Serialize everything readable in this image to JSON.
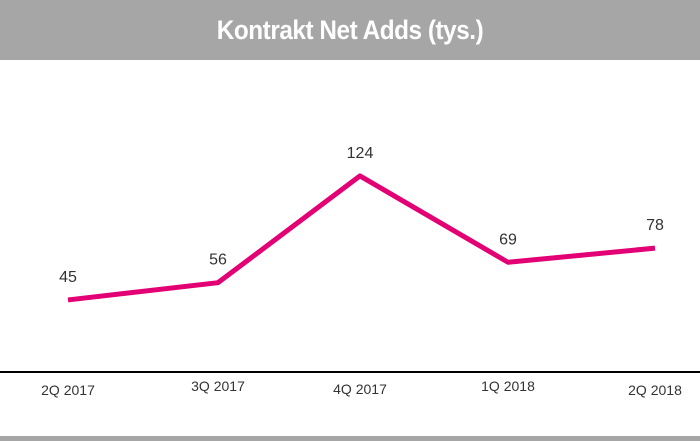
{
  "chart_data": {
    "type": "line",
    "title": "Kontrakt Net Adds (tys.)",
    "categories": [
      "2Q 2017",
      "3Q 2017",
      "4Q 2017",
      "1Q 2018",
      "2Q 2018"
    ],
    "values": [
      45,
      56,
      124,
      69,
      78
    ],
    "data_labels": [
      "45",
      "56",
      "124",
      "69",
      "78"
    ],
    "ylim": [
      0,
      200
    ],
    "grid": false,
    "legend": "none",
    "colors": {
      "line": "#e20074",
      "header": "#a6a6a6",
      "axis": "#000000"
    }
  }
}
